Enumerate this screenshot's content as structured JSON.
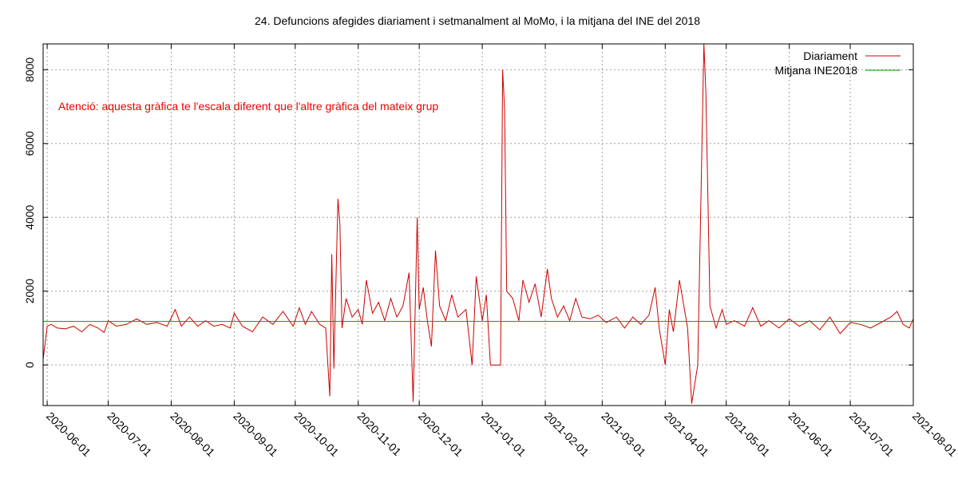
{
  "chart_data": {
    "type": "line",
    "title": "24. Defuncions afegides diariament i setmanalment al MoMo, i la mitjana del INE del 2018",
    "annotation": "Atenció: aquesta gràfica te l'escala diferent que l'altre gràfica del mateix grup",
    "xlabel": "",
    "ylabel": "",
    "xlim": [
      "2020-05-30",
      "2021-08-01"
    ],
    "ylim": [
      -1100,
      8700
    ],
    "y_ticks": [
      0,
      2000,
      4000,
      6000,
      8000
    ],
    "y_tick_labels": [
      "0",
      "2000",
      "4000",
      "6000",
      "8000"
    ],
    "x_ticks": [
      "2020-06-01",
      "2020-07-01",
      "2020-08-01",
      "2020-09-01",
      "2020-10-01",
      "2020-11-01",
      "2020-12-01",
      "2021-01-01",
      "2021-02-01",
      "2021-03-01",
      "2021-04-01",
      "2021-05-01",
      "2021-06-01",
      "2021-07-01",
      "2021-08-01"
    ],
    "grid": true,
    "legend_position": "top-right",
    "series": [
      {
        "name": "Diariament",
        "color": "#cc0000",
        "points": [
          [
            "2020-05-30",
            150
          ],
          [
            "2020-06-01",
            1050
          ],
          [
            "2020-06-03",
            1100
          ],
          [
            "2020-06-06",
            1000
          ],
          [
            "2020-06-10",
            980
          ],
          [
            "2020-06-14",
            1050
          ],
          [
            "2020-06-18",
            900
          ],
          [
            "2020-06-22",
            1100
          ],
          [
            "2020-06-26",
            1000
          ],
          [
            "2020-06-29",
            880
          ],
          [
            "2020-07-01",
            1200
          ],
          [
            "2020-07-05",
            1050
          ],
          [
            "2020-07-10",
            1100
          ],
          [
            "2020-07-15",
            1250
          ],
          [
            "2020-07-20",
            1100
          ],
          [
            "2020-07-25",
            1150
          ],
          [
            "2020-07-30",
            1050
          ],
          [
            "2020-08-03",
            1500
          ],
          [
            "2020-08-06",
            1050
          ],
          [
            "2020-08-10",
            1300
          ],
          [
            "2020-08-14",
            1050
          ],
          [
            "2020-08-18",
            1200
          ],
          [
            "2020-08-22",
            1050
          ],
          [
            "2020-08-26",
            1100
          ],
          [
            "2020-08-30",
            1000
          ],
          [
            "2020-09-01",
            1400
          ],
          [
            "2020-09-05",
            1050
          ],
          [
            "2020-09-10",
            900
          ],
          [
            "2020-09-15",
            1300
          ],
          [
            "2020-09-20",
            1100
          ],
          [
            "2020-09-25",
            1450
          ],
          [
            "2020-09-30",
            1050
          ],
          [
            "2020-10-03",
            1550
          ],
          [
            "2020-10-06",
            1100
          ],
          [
            "2020-10-09",
            1450
          ],
          [
            "2020-10-13",
            1100
          ],
          [
            "2020-10-16",
            1000
          ],
          [
            "2020-10-18",
            -850
          ],
          [
            "2020-10-19",
            3000
          ],
          [
            "2020-10-20",
            -100
          ],
          [
            "2020-10-22",
            4500
          ],
          [
            "2020-10-23",
            3800
          ],
          [
            "2020-10-24",
            1000
          ],
          [
            "2020-10-26",
            1800
          ],
          [
            "2020-10-29",
            1300
          ],
          [
            "2020-11-01",
            1500
          ],
          [
            "2020-11-03",
            1100
          ],
          [
            "2020-11-05",
            2300
          ],
          [
            "2020-11-08",
            1400
          ],
          [
            "2020-11-11",
            1700
          ],
          [
            "2020-11-14",
            1200
          ],
          [
            "2020-11-17",
            1800
          ],
          [
            "2020-11-20",
            1300
          ],
          [
            "2020-11-23",
            1600
          ],
          [
            "2020-11-26",
            2500
          ],
          [
            "2020-11-28",
            -1000
          ],
          [
            "2020-11-30",
            4000
          ],
          [
            "2020-12-01",
            1500
          ],
          [
            "2020-12-03",
            2100
          ],
          [
            "2020-12-05",
            1200
          ],
          [
            "2020-12-07",
            500
          ],
          [
            "2020-12-09",
            3100
          ],
          [
            "2020-12-11",
            1600
          ],
          [
            "2020-12-14",
            1200
          ],
          [
            "2020-12-17",
            1900
          ],
          [
            "2020-12-20",
            1300
          ],
          [
            "2020-12-24",
            1500
          ],
          [
            "2020-12-27",
            0
          ],
          [
            "2020-12-29",
            2400
          ],
          [
            "2021-01-01",
            1200
          ],
          [
            "2021-01-03",
            1900
          ],
          [
            "2021-01-05",
            0
          ],
          [
            "2021-01-10",
            0
          ],
          [
            "2021-01-11",
            8000
          ],
          [
            "2021-01-12",
            6900
          ],
          [
            "2021-01-13",
            2000
          ],
          [
            "2021-01-16",
            1800
          ],
          [
            "2021-01-19",
            1200
          ],
          [
            "2021-01-21",
            2300
          ],
          [
            "2021-01-24",
            1700
          ],
          [
            "2021-01-27",
            2200
          ],
          [
            "2021-01-30",
            1300
          ],
          [
            "2021-02-02",
            2600
          ],
          [
            "2021-02-04",
            1800
          ],
          [
            "2021-02-07",
            1300
          ],
          [
            "2021-02-10",
            1600
          ],
          [
            "2021-02-13",
            1200
          ],
          [
            "2021-02-16",
            1800
          ],
          [
            "2021-02-19",
            1300
          ],
          [
            "2021-02-23",
            1250
          ],
          [
            "2021-02-27",
            1350
          ],
          [
            "2021-03-03",
            1150
          ],
          [
            "2021-03-08",
            1300
          ],
          [
            "2021-03-12",
            1000
          ],
          [
            "2021-03-16",
            1300
          ],
          [
            "2021-03-20",
            1100
          ],
          [
            "2021-03-24",
            1350
          ],
          [
            "2021-03-27",
            2100
          ],
          [
            "2021-03-29",
            1000
          ],
          [
            "2021-04-01",
            0
          ],
          [
            "2021-04-03",
            1500
          ],
          [
            "2021-04-05",
            900
          ],
          [
            "2021-04-08",
            2300
          ],
          [
            "2021-04-12",
            1000
          ],
          [
            "2021-04-14",
            -1050
          ],
          [
            "2021-04-17",
            0
          ],
          [
            "2021-04-20",
            8700
          ],
          [
            "2021-04-21",
            7400
          ],
          [
            "2021-04-23",
            1600
          ],
          [
            "2021-04-26",
            1000
          ],
          [
            "2021-04-29",
            1500
          ],
          [
            "2021-05-01",
            1100
          ],
          [
            "2021-05-05",
            1200
          ],
          [
            "2021-05-10",
            1050
          ],
          [
            "2021-05-14",
            1550
          ],
          [
            "2021-05-18",
            1050
          ],
          [
            "2021-05-22",
            1200
          ],
          [
            "2021-05-27",
            1000
          ],
          [
            "2021-06-01",
            1250
          ],
          [
            "2021-06-06",
            1050
          ],
          [
            "2021-06-11",
            1200
          ],
          [
            "2021-06-16",
            950
          ],
          [
            "2021-06-21",
            1300
          ],
          [
            "2021-06-26",
            850
          ],
          [
            "2021-07-01",
            1150
          ],
          [
            "2021-07-06",
            1100
          ],
          [
            "2021-07-11",
            1000
          ],
          [
            "2021-07-16",
            1150
          ],
          [
            "2021-07-21",
            1300
          ],
          [
            "2021-07-24",
            1450
          ],
          [
            "2021-07-27",
            1100
          ],
          [
            "2021-07-30",
            1000
          ],
          [
            "2021-08-01",
            1250
          ]
        ]
      },
      {
        "name": "Mitjana INE2018",
        "color": "#009900",
        "points": [
          [
            "2020-05-30",
            1180
          ],
          [
            "2021-08-01",
            1180
          ]
        ]
      }
    ]
  }
}
